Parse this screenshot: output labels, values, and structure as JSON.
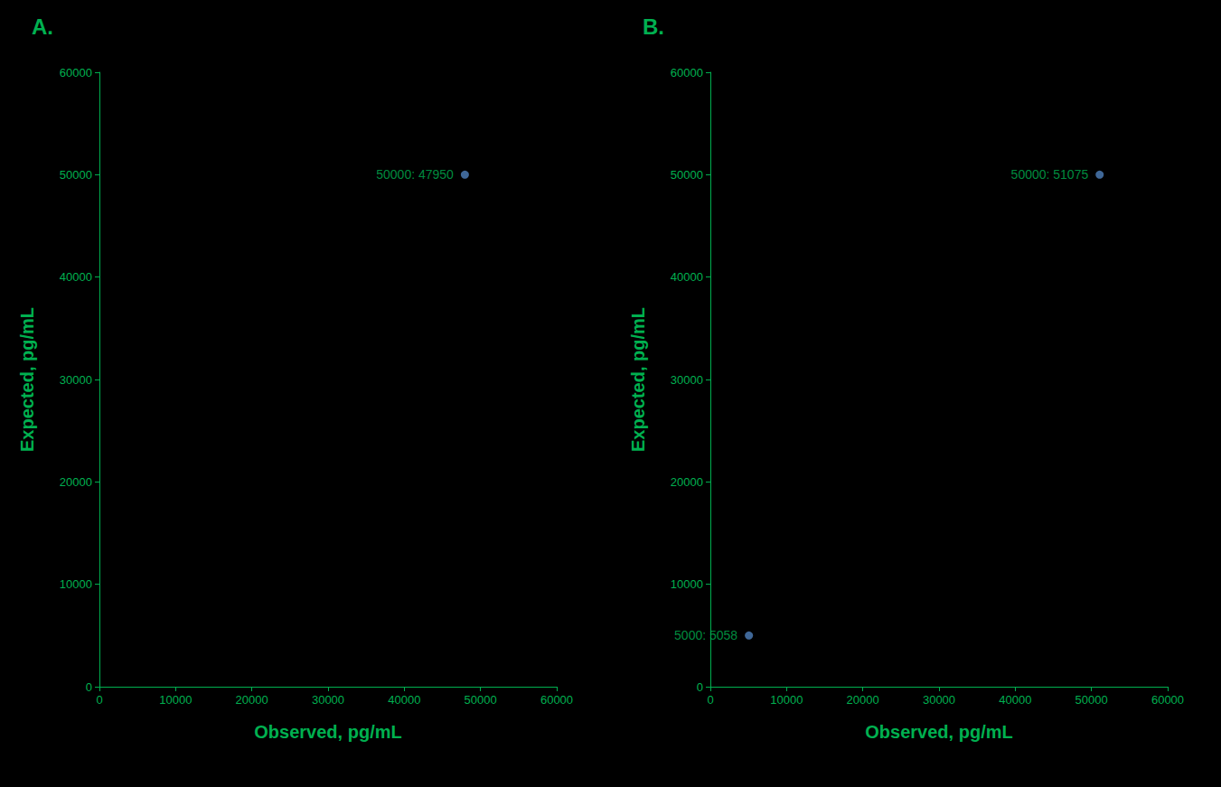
{
  "chart_data": [
    {
      "type": "scatter",
      "panel": "A.",
      "x_label": "Observed, pg/mL",
      "y_label": "Expected, pg/mL",
      "x": [
        47950
      ],
      "values": [
        50000
      ],
      "value_labels": [
        "50000: 47950"
      ],
      "color": "#4f81bd",
      "data_labels": true,
      "xlim": [
        0,
        60000
      ],
      "xticks": [
        0,
        10000,
        20000,
        30000,
        40000,
        50000,
        60000
      ],
      "ylim": [
        0,
        60000
      ],
      "yticks": [
        0,
        10000,
        20000,
        30000,
        40000,
        50000,
        60000
      ]
    },
    {
      "type": "scatter",
      "panel": "B.",
      "x_label": "Observed, pg/mL",
      "y_label": "Expected, pg/mL",
      "x": [
        51075,
        5058
      ],
      "values": [
        50000,
        5000
      ],
      "value_labels": [
        "50000: 51075",
        "5000: 5058"
      ],
      "color": "#4f81bd",
      "data_labels": true,
      "xlim": [
        0,
        60000
      ],
      "xticks": [
        0,
        10000,
        20000,
        30000,
        40000,
        50000,
        60000
      ],
      "ylim": [
        0,
        60000
      ],
      "yticks": [
        0,
        10000,
        20000,
        30000,
        40000,
        50000,
        60000
      ]
    }
  ]
}
